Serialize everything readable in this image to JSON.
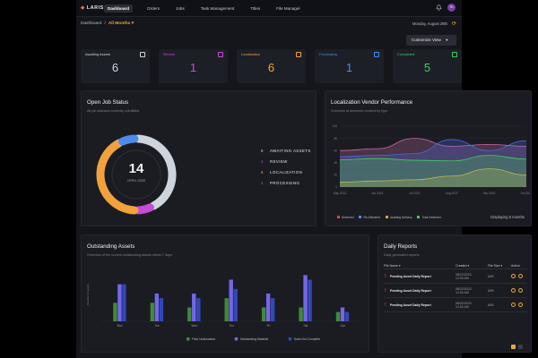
{
  "app": {
    "logo": "LARIS",
    "avatar": "TK"
  },
  "nav": [
    "Dashboard",
    "Orders",
    "Jobs",
    "Task Management",
    "Titles",
    "File Manager"
  ],
  "breadcrumb": {
    "root": "Dashboard",
    "sep": "/",
    "selected": "All Months",
    "chevron": "▾"
  },
  "date": "Monday, August 29th",
  "customize": "Customize View",
  "kpis": [
    {
      "label": "Awaiting Assets",
      "value": "6",
      "color": "#cfd3dc",
      "icon": "clock-icon"
    },
    {
      "label": "Review",
      "value": "1",
      "color": "#c64bd6",
      "icon": "review-icon"
    },
    {
      "label": "Localization",
      "value": "6",
      "color": "#f2a23c",
      "icon": "localization-icon"
    },
    {
      "label": "Processing",
      "value": "1",
      "color": "#4a8ce8",
      "icon": "processing-icon"
    },
    {
      "label": "Completed",
      "value": "5",
      "color": "#3fcf5e",
      "icon": "check-icon"
    }
  ],
  "open_jobs": {
    "title": "Open Job Status",
    "subtitle": "All job statuses currently unfulfilled",
    "total": "14",
    "total_label": "OPEN JOBS",
    "legend": [
      {
        "n": "6",
        "label": "AWAITING ASSETS",
        "color": "#cfd3dc",
        "value": 6
      },
      {
        "n": "1",
        "label": "REVIEW",
        "color": "#c64bd6",
        "value": 1
      },
      {
        "n": "6",
        "label": "LOCALIZATION",
        "color": "#f2a23c",
        "value": 6
      },
      {
        "n": "1",
        "label": "PROCESSING",
        "color": "#4a8ce8",
        "value": 1
      }
    ]
  },
  "vendor": {
    "title": "Localization Vendor Performance",
    "subtitle": "Overview of delivered content by type",
    "y_ticks": [
      "100",
      "80",
      "60",
      "40",
      "20",
      "0"
    ],
    "x_ticks": [
      "May 2023",
      "Jun 2023",
      "Jul 2023",
      "Aug 2023",
      "Sep 2023",
      "Oct 2023"
    ],
    "legend": [
      {
        "label": "Delivered",
        "color": "#e0463a"
      },
      {
        "label": "Re-Delivered",
        "color": "#4a8ce8"
      },
      {
        "label": "Awaiting Delivery",
        "color": "#f2a23c"
      },
      {
        "label": "Total Delivered",
        "color": "#3fcf5e"
      }
    ],
    "footer": "Displaying 6 months"
  },
  "assets": {
    "title": "Outstanding Assets",
    "subtitle": "Overview of the current outstanding assets within 7 days",
    "ylabel": "Number of assets",
    "legend": [
      {
        "label": "Files Unallocated",
        "color": "#3f8a3a"
      },
      {
        "label": "Outstanding Material",
        "color": "#7467e8"
      },
      {
        "label": "Subs Not Complete",
        "color": "#3248b8"
      }
    ]
  },
  "reports": {
    "title": "Daily Reports",
    "subtitle": "Daily generated reports",
    "headers": {
      "name": "File Name ▾",
      "created": "Created ▾",
      "size": "File Size ▾",
      "action": "Action"
    },
    "rows": [
      {
        "name": "Pending Asset Daily Report",
        "date1": "08/22/2023",
        "date2": "12:00 AM",
        "size": "6KB"
      },
      {
        "name": "Pending Asset Daily Report",
        "date1": "08/22/2023",
        "date2": "12:00 AM",
        "size": "6KB"
      },
      {
        "name": "Pending Asset Daily Report",
        "date1": "08/22/2023",
        "date2": "12:00 AM",
        "size": "6KB"
      }
    ]
  },
  "chart_data": [
    {
      "type": "pie",
      "title": "Open Job Status",
      "categories": [
        "AWAITING ASSETS",
        "REVIEW",
        "LOCALIZATION",
        "PROCESSING"
      ],
      "values": [
        6,
        1,
        6,
        1
      ]
    },
    {
      "type": "area",
      "title": "Localization Vendor Performance",
      "x": [
        "May 2023",
        "Jun 2023",
        "Jul 2023",
        "Aug 2023",
        "Sep 2023",
        "Oct 2023"
      ],
      "ylim": [
        0,
        100
      ],
      "series": [
        {
          "name": "Delivered",
          "color": "#c76aa8",
          "values": [
            60,
            63,
            80,
            67,
            70,
            67
          ]
        },
        {
          "name": "Re-Delivered",
          "color": "#4a6ae0",
          "values": [
            50,
            52,
            55,
            78,
            60,
            76
          ]
        },
        {
          "name": "Awaiting Delivery",
          "color": "#e6b450",
          "values": [
            8,
            10,
            12,
            18,
            30,
            20
          ]
        },
        {
          "name": "Total Delivered",
          "color": "#3fcf5e",
          "values": [
            45,
            47,
            44,
            43,
            52,
            46
          ]
        }
      ]
    },
    {
      "type": "bar",
      "title": "Outstanding Assets",
      "categories": [
        "Mon",
        "Tue",
        "Wed",
        "Thu",
        "Fri",
        "Sat",
        "Sun"
      ],
      "series": [
        {
          "name": "Files Unallocated",
          "color": "#3f8a3a",
          "values": [
            4,
            4,
            3,
            5,
            3,
            3,
            2
          ]
        },
        {
          "name": "Outstanding Material",
          "color": "#7467e8",
          "values": [
            8,
            6,
            6,
            9,
            6,
            10,
            3
          ]
        },
        {
          "name": "Subs Not Complete",
          "color": "#3248b8",
          "values": [
            8,
            5,
            5,
            7,
            5,
            9,
            2
          ]
        }
      ],
      "ylim": [
        0,
        12
      ]
    }
  ]
}
